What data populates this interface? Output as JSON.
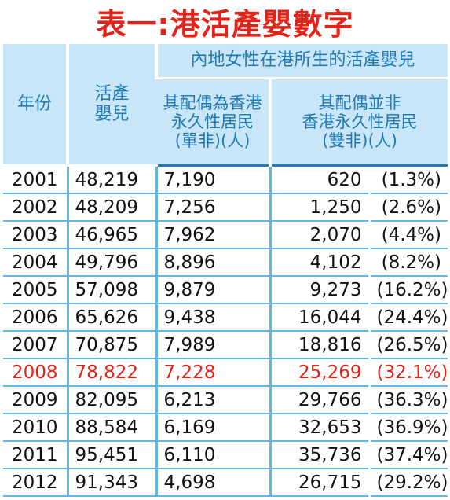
{
  "title": "表一:港活產嬰數字",
  "headers": {
    "year": "年份",
    "babies_line1": "活產",
    "babies_line2": "嬰兒",
    "group": "內地女性在港所生的活產嬰兒",
    "single_line1": "其配偶為香港",
    "single_line2": "永久性居民",
    "single_line3": "(單非)(人)",
    "double_line1": "其配偶並非",
    "double_line2": "香港永久性居民",
    "double_line3": "(雙非)(人)"
  },
  "rows": [
    {
      "year": "2001",
      "babies": "48,219",
      "single": "7,190",
      "double": "620",
      "pct": "(1.3%)"
    },
    {
      "year": "2002",
      "babies": "48,209",
      "single": "7,256",
      "double": "1,250",
      "pct": "(2.6%)"
    },
    {
      "year": "2003",
      "babies": "46,965",
      "single": "7,962",
      "double": "2,070",
      "pct": "(4.4%)"
    },
    {
      "year": "2004",
      "babies": "49,796",
      "single": "8,896",
      "double": "4,102",
      "pct": "(8.2%)"
    },
    {
      "year": "2005",
      "babies": "57,098",
      "single": "9,879",
      "double": "9,273",
      "pct": "(16.2%)"
    },
    {
      "year": "2006",
      "babies": "65,626",
      "single": "9,438",
      "double": "16,044",
      "pct": "(24.4%)"
    },
    {
      "year": "2007",
      "babies": "70,875",
      "single": "7,989",
      "double": "18,816",
      "pct": "(26.5%)"
    },
    {
      "year": "2008",
      "babies": "78,822",
      "single": "7,228",
      "double": "25,269",
      "pct": "(32.1%)"
    },
    {
      "year": "2009",
      "babies": "82,095",
      "single": "6,213",
      "double": "29,766",
      "pct": "(36.3%)"
    },
    {
      "year": "2010",
      "babies": "88,584",
      "single": "6,169",
      "double": "32,653",
      "pct": "(36.9%)"
    },
    {
      "year": "2011",
      "babies": "95,451",
      "single": "6,110",
      "double": "35,736",
      "pct": "(37.4%)"
    },
    {
      "year": "2012",
      "babies": "91,343",
      "single": "4,698",
      "double": "26,715",
      "pct": "(29.2%)"
    }
  ],
  "colors": {
    "title": "#e2231a",
    "header_bg": "#c8e6f7",
    "header_text": "#1f7ab8",
    "rule": "#62b6e6",
    "highlight_row": "#e2231a"
  },
  "highlight_year": "2008"
}
